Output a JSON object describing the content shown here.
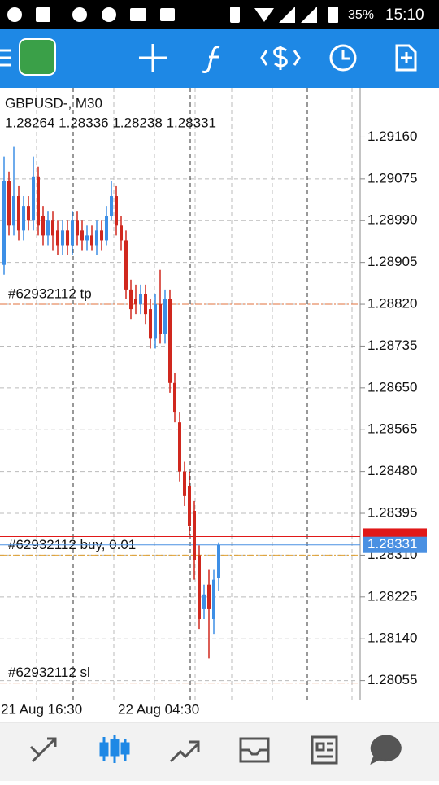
{
  "status_bar": {
    "battery": "35%",
    "time": "15:10"
  },
  "chart_data": {
    "type": "candlestick",
    "title": "GBPUSD-, M30",
    "ohlc_text": "1.28264 1.28336 1.28238 1.28331",
    "categories": [
      "21 Aug 16:30",
      null,
      null,
      null,
      null,
      null,
      null,
      null,
      null,
      null,
      null,
      null,
      null,
      null,
      null,
      null,
      null,
      null,
      null,
      null,
      null,
      null,
      null,
      null,
      "22 Aug 04:30",
      null,
      null,
      null,
      null,
      null,
      null,
      null,
      null,
      null,
      null,
      null,
      null,
      null,
      null,
      null,
      null,
      null,
      null,
      null,
      null
    ],
    "open": [
      1.289,
      1.2907,
      1.2898,
      1.2904,
      1.2897,
      1.2902,
      1.2899,
      1.2908,
      1.29,
      1.2896,
      1.2899,
      1.2897,
      1.2894,
      1.2897,
      1.2894,
      1.2899,
      1.2897,
      1.2895,
      1.2896,
      1.2894,
      1.2897,
      1.2895,
      1.29,
      1.2904,
      1.2898,
      1.2895,
      1.2885,
      1.2883,
      1.2882,
      1.2884,
      1.2881,
      1.2875,
      1.2882,
      1.2876,
      1.2883,
      1.2866,
      1.2858,
      1.2848,
      1.2845,
      1.284,
      1.2831,
      1.282,
      1.2825,
      1.2818,
      1.28264
    ],
    "high": [
      1.2912,
      1.2909,
      1.2914,
      1.2906,
      1.2904,
      1.2904,
      1.2912,
      1.291,
      1.2902,
      1.2901,
      1.2901,
      1.2899,
      1.2899,
      1.2899,
      1.2901,
      1.2901,
      1.2899,
      1.2898,
      1.2898,
      1.2899,
      1.2899,
      1.2902,
      1.2907,
      1.2906,
      1.29,
      1.2897,
      1.2887,
      1.2886,
      1.2886,
      1.2886,
      1.2883,
      1.2884,
      1.2889,
      1.2885,
      1.2885,
      1.2868,
      1.286,
      1.285,
      1.2848,
      1.2842,
      1.2833,
      1.2825,
      1.2828,
      1.2828,
      1.28336
    ],
    "low": [
      1.2888,
      1.2896,
      1.2896,
      1.2895,
      1.2895,
      1.2897,
      1.2897,
      1.2896,
      1.2894,
      1.2894,
      1.2893,
      1.2892,
      1.2892,
      1.2892,
      1.2892,
      1.2894,
      1.2893,
      1.2893,
      1.2893,
      1.2892,
      1.2893,
      1.2894,
      1.2899,
      1.2896,
      1.2893,
      1.2883,
      1.2879,
      1.288,
      1.288,
      1.2878,
      1.2873,
      1.2873,
      1.2874,
      1.2874,
      1.2864,
      1.2858,
      1.2846,
      1.2841,
      1.2835,
      1.2826,
      1.2816,
      1.2818,
      1.281,
      1.2815,
      1.28238
    ],
    "close": [
      1.2907,
      1.2898,
      1.2904,
      1.2897,
      1.2902,
      1.2899,
      1.2908,
      1.2898,
      1.2896,
      1.2899,
      1.2896,
      1.2894,
      1.2897,
      1.2894,
      1.2899,
      1.2896,
      1.2895,
      1.2896,
      1.2894,
      1.2897,
      1.2895,
      1.29,
      1.2904,
      1.2898,
      1.2895,
      1.2885,
      1.2881,
      1.2882,
      1.2884,
      1.288,
      1.2875,
      1.2882,
      1.2876,
      1.2883,
      1.2866,
      1.286,
      1.2848,
      1.2843,
      1.2837,
      1.283,
      1.2818,
      1.2823,
      1.282,
      1.2826,
      1.28331
    ],
    "up_color": "#3d8fe6",
    "down_color": "#d0281e",
    "ylim": [
      1.2797,
      1.2926
    ],
    "yticks": [
      {
        "value": 1.2916,
        "label": "1.29160"
      },
      1.29075,
      {
        "value": 1.2899,
        "label": "1.28990"
      },
      1.28905,
      {
        "value": 1.2882,
        "label": "1.28820"
      },
      1.28735,
      {
        "value": 1.2865,
        "label": "1.28650"
      },
      1.28565,
      {
        "value": 1.2848,
        "label": "1.28480"
      },
      1.28395,
      {
        "value": 1.2831,
        "label": "1.28310"
      },
      1.28225,
      {
        "value": 1.2814,
        "label": "1.28140"
      },
      1.28055
    ],
    "grid": true,
    "levels": [
      {
        "label": "#62932112 tp",
        "value": 1.2882,
        "color": "#e0703c"
      },
      {
        "label": "#62932112 buy, 0.01",
        "value": 1.2831,
        "color": "#e0a030"
      },
      {
        "label": "#62932112 sl",
        "value": 1.2805,
        "color": "#e0703c"
      }
    ],
    "ask": {
      "value": 1.28348,
      "color": "#e01818"
    },
    "bid": {
      "value": 1.28331,
      "color": "#4a90e2"
    }
  }
}
